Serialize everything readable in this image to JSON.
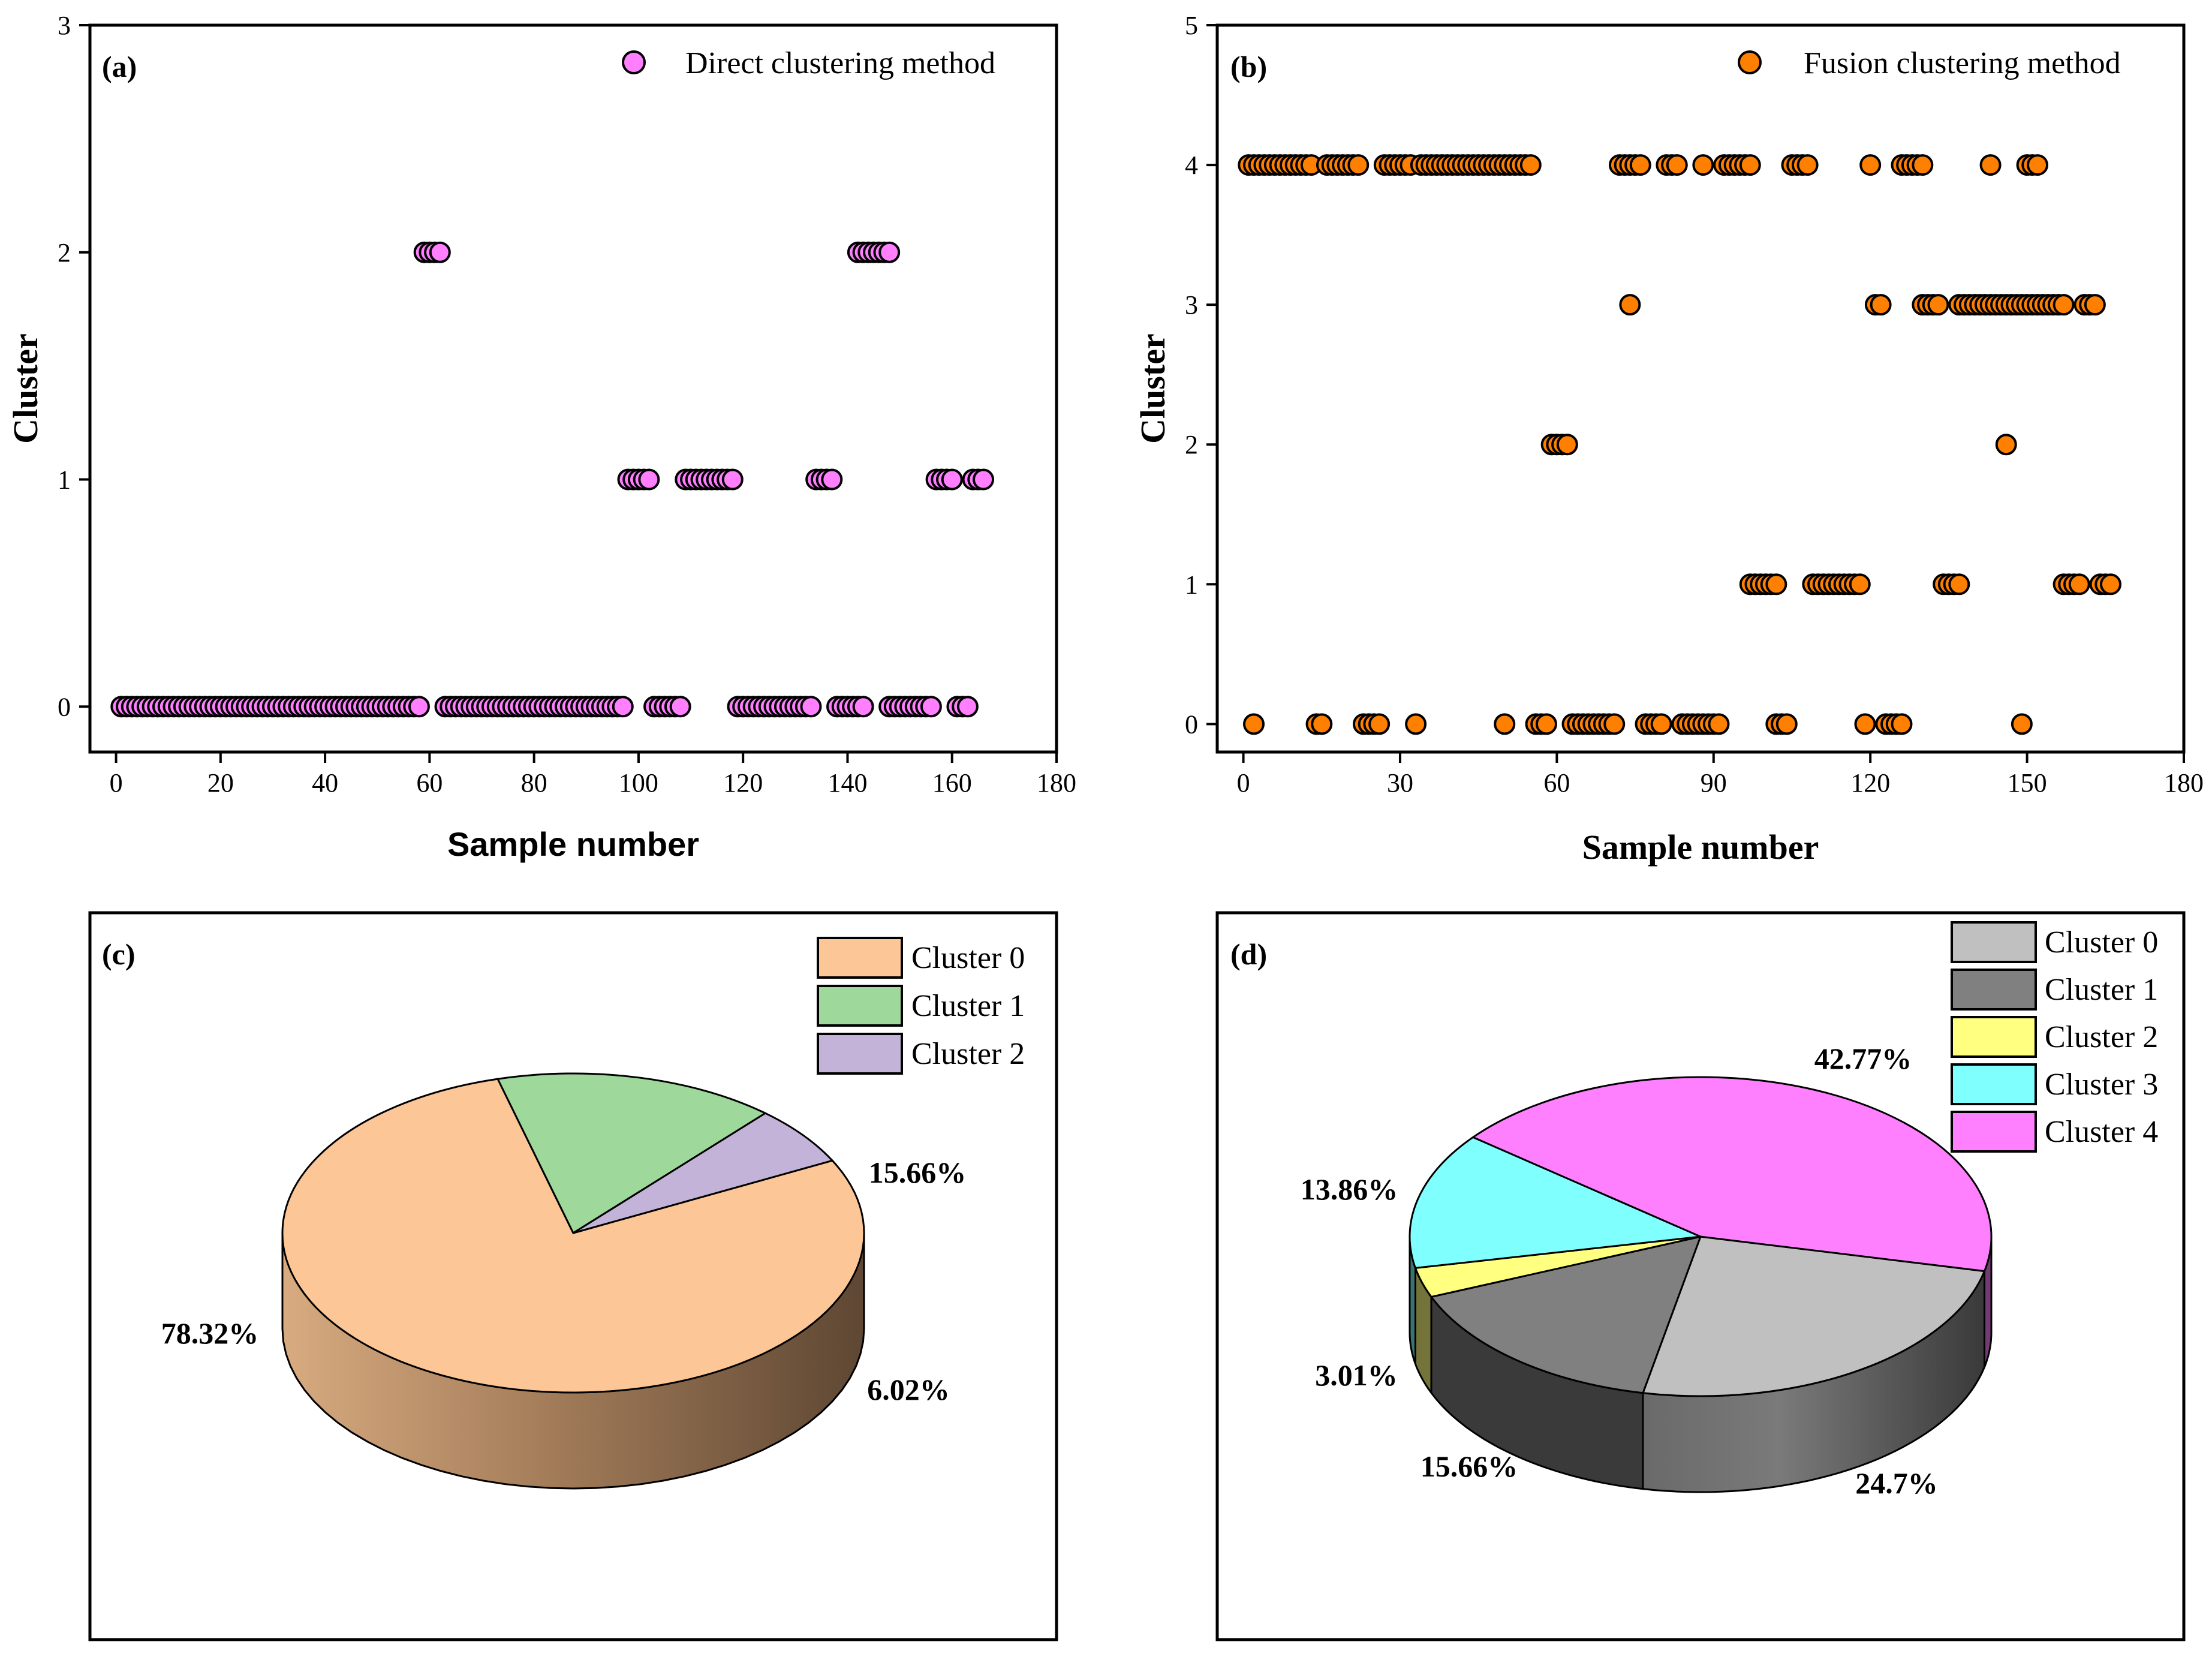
{
  "chart_data": [
    {
      "id": "a",
      "type": "scatter",
      "panel_label": "(a)",
      "xlabel": "Sample number",
      "ylabel": "Cluster",
      "xlim": [
        -5,
        180
      ],
      "ylim": [
        -0.2,
        3
      ],
      "xticks": [
        0,
        20,
        40,
        60,
        80,
        100,
        120,
        140,
        160,
        180
      ],
      "yticks": [
        0,
        1,
        2,
        3
      ],
      "legend": "Direct clustering method",
      "legend_position": "top-right",
      "marker_color": "#ff7fff",
      "series": [
        {
          "cluster": 0,
          "x_ranges": [
            [
              1,
              58
            ],
            [
              63,
              97
            ],
            [
              103,
              108
            ],
            [
              119,
              133
            ],
            [
              138,
              143
            ],
            [
              148,
              156
            ],
            [
              161,
              163
            ]
          ]
        },
        {
          "cluster": 1,
          "x_ranges": [
            [
              98,
              102
            ],
            [
              109,
              118
            ],
            [
              134,
              137
            ],
            [
              157,
              160
            ],
            [
              164,
              166
            ]
          ]
        },
        {
          "cluster": 2,
          "x_ranges": [
            [
              59,
              62
            ],
            [
              142,
              148
            ]
          ]
        }
      ]
    },
    {
      "id": "b",
      "type": "scatter",
      "panel_label": "(b)",
      "xlabel": "Sample number",
      "ylabel": "Cluster",
      "xlim": [
        -5,
        180
      ],
      "ylim": [
        -0.2,
        5
      ],
      "xticks": [
        0,
        30,
        60,
        90,
        120,
        150,
        180
      ],
      "yticks": [
        0,
        1,
        2,
        3,
        4,
        5
      ],
      "legend": "Fusion clustering method",
      "legend_position": "top-right",
      "marker_color": "#ff8000",
      "series": [
        {
          "cluster": 4,
          "x_ranges": [
            [
              1,
              13
            ],
            [
              16,
              22
            ],
            [
              27,
              32
            ],
            [
              34,
              55
            ],
            [
              72,
              76
            ],
            [
              81,
              83
            ],
            [
              88,
              88
            ],
            [
              92,
              97
            ],
            [
              105,
              108
            ],
            [
              120,
              120
            ],
            [
              126,
              130
            ],
            [
              143,
              143
            ],
            [
              150,
              152
            ]
          ]
        },
        {
          "cluster": 3,
          "x_ranges": [
            [
              74,
              74
            ],
            [
              121,
              122
            ],
            [
              130,
              133
            ],
            [
              137,
              157
            ],
            [
              161,
              163
            ]
          ]
        },
        {
          "cluster": 2,
          "x_ranges": [
            [
              59,
              62
            ],
            [
              146,
              146
            ]
          ]
        },
        {
          "cluster": 1,
          "x_ranges": [
            [
              97,
              102
            ],
            [
              109,
              118
            ],
            [
              134,
              137
            ],
            [
              157,
              160
            ],
            [
              164,
              166
            ]
          ]
        },
        {
          "cluster": 0,
          "x_ranges": [
            [
              2,
              2
            ],
            [
              14,
              15
            ],
            [
              23,
              26
            ],
            [
              33,
              33
            ],
            [
              50,
              50
            ],
            [
              56,
              58
            ],
            [
              63,
              71
            ],
            [
              77,
              80
            ],
            [
              84,
              91
            ],
            [
              102,
              104
            ],
            [
              119,
              119
            ],
            [
              123,
              126
            ],
            [
              149,
              149
            ]
          ]
        }
      ]
    },
    {
      "id": "c",
      "type": "pie",
      "panel_label": "(c)",
      "labels": [
        "Cluster 0",
        "Cluster 1",
        "Cluster 2"
      ],
      "values": [
        78.32,
        15.66,
        6.02
      ],
      "value_labels": [
        "78.32%",
        "15.66%",
        "6.02%"
      ],
      "colors": [
        "#fcc697",
        "#9ed89b",
        "#c3b3d9"
      ],
      "legend_position": "top-right"
    },
    {
      "id": "d",
      "type": "pie",
      "panel_label": "(d)",
      "labels": [
        "Cluster 0",
        "Cluster 1",
        "Cluster 2",
        "Cluster 3",
        "Cluster 4"
      ],
      "values": [
        24.7,
        15.66,
        3.01,
        13.86,
        42.77
      ],
      "value_labels": [
        "24.7%",
        "15.66%",
        "3.01%",
        "13.86%",
        "42.77%"
      ],
      "colors": [
        "#c0c0c0",
        "#808080",
        "#ffff80",
        "#80ffff",
        "#ff80ff"
      ],
      "legend_position": "top-right"
    }
  ]
}
